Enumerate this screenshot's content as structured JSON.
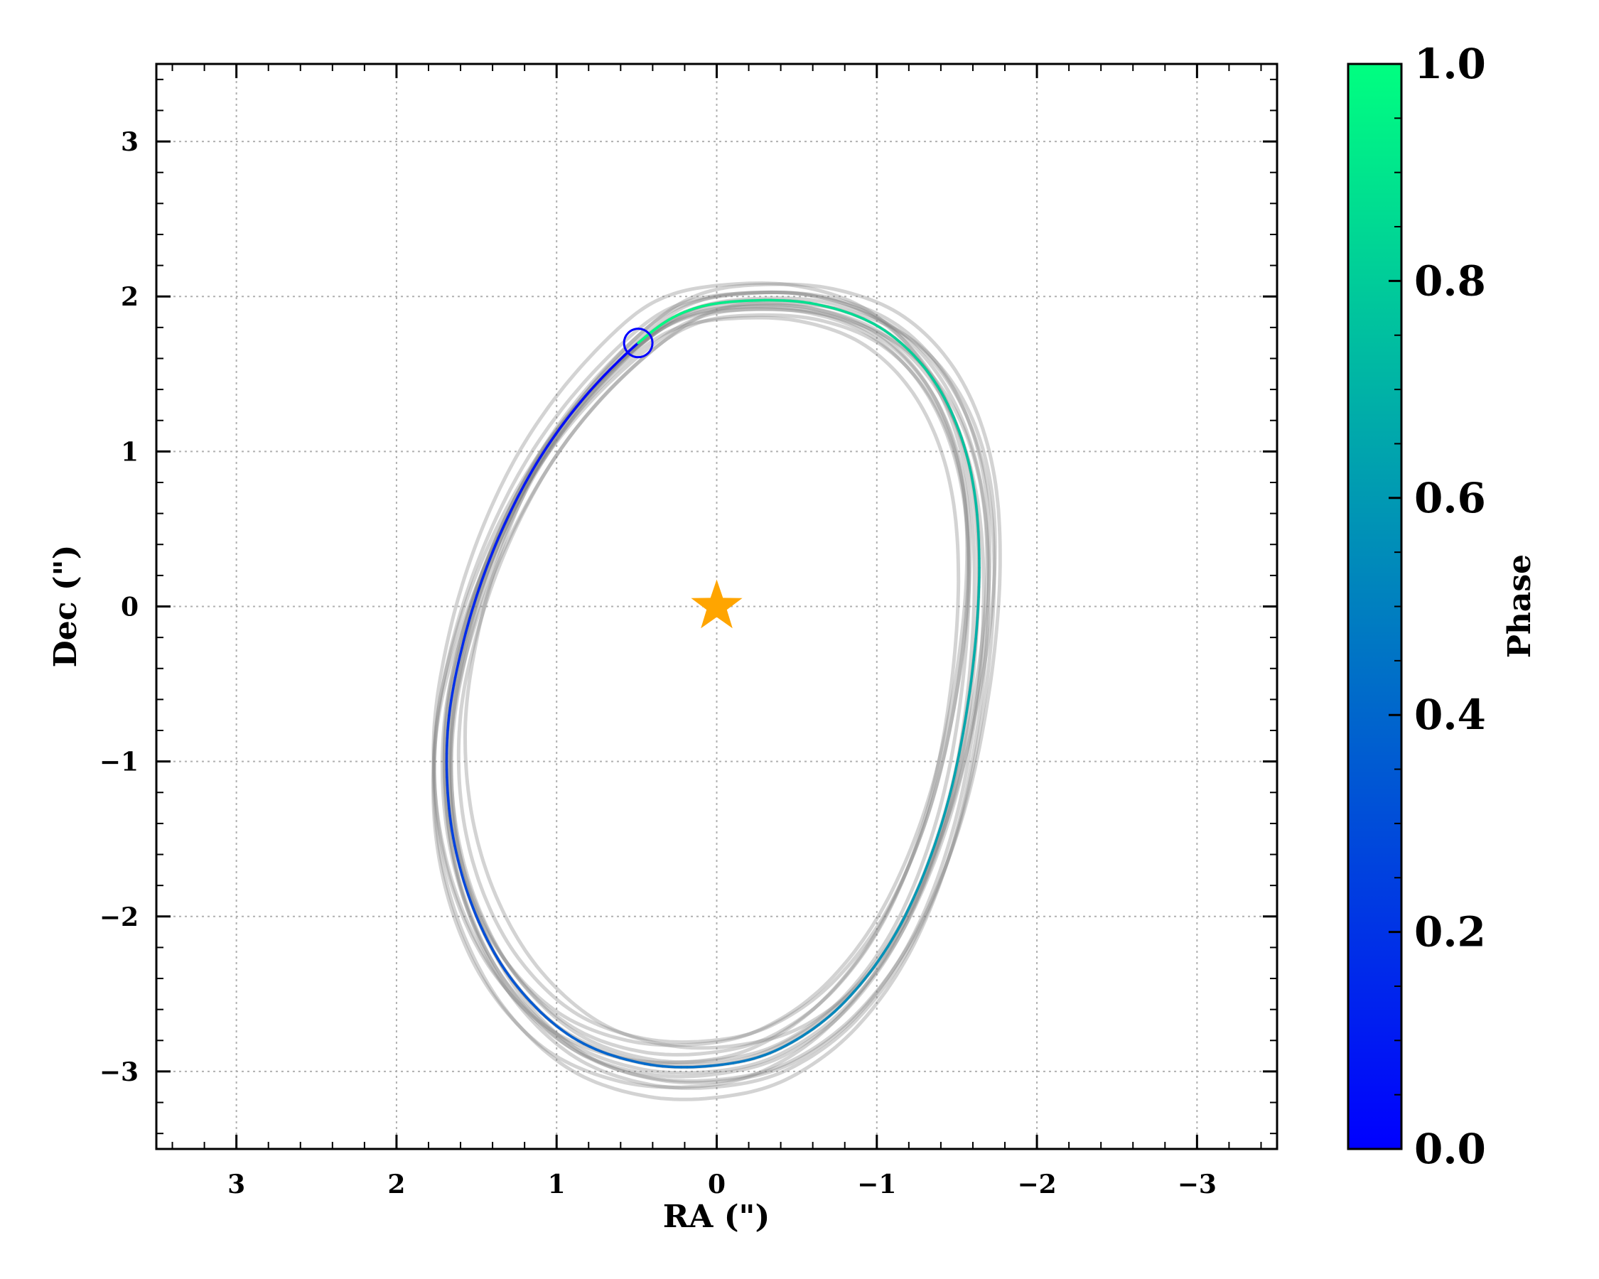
{
  "chart_data": {
    "type": "line",
    "title": "",
    "xlabel": "RA (\")",
    "ylabel": "Dec (\")",
    "xlim": [
      3.5,
      -3.5
    ],
    "ylim": [
      -3.5,
      3.5
    ],
    "xticks": [
      3,
      2,
      1,
      0,
      -1,
      -2,
      -3
    ],
    "yticks": [
      3,
      2,
      1,
      0,
      -1,
      -2,
      -3
    ],
    "xtick_labels": [
      "3",
      "2",
      "1",
      "0",
      "−1",
      "−2",
      "−3"
    ],
    "ytick_labels": [
      "3",
      "2",
      "1",
      "0",
      "−1",
      "−2",
      "−3"
    ],
    "grid": true,
    "colors": {
      "axes": "#000000",
      "grid": "#b0b0b0",
      "star": "#ffa500",
      "orbit_draws": "#808080",
      "marker": "#0000ff"
    },
    "star": {
      "x": 0.0,
      "y": 0.0,
      "label": ""
    },
    "best_orbit": {
      "colormap": "winter",
      "points": [
        {
          "x": 0.49,
          "y": 1.7,
          "phase": 0.0
        },
        {
          "x": 0.85,
          "y": 1.32,
          "phase": 0.06
        },
        {
          "x": 1.15,
          "y": 0.88,
          "phase": 0.11
        },
        {
          "x": 1.4,
          "y": 0.35,
          "phase": 0.17
        },
        {
          "x": 1.58,
          "y": -0.22,
          "phase": 0.23
        },
        {
          "x": 1.68,
          "y": -0.8,
          "phase": 0.29
        },
        {
          "x": 1.66,
          "y": -1.4,
          "phase": 0.35
        },
        {
          "x": 1.52,
          "y": -1.95,
          "phase": 0.41
        },
        {
          "x": 1.27,
          "y": -2.42,
          "phase": 0.47
        },
        {
          "x": 0.9,
          "y": -2.78,
          "phase": 0.52
        },
        {
          "x": 0.45,
          "y": -2.95,
          "phase": 0.57
        },
        {
          "x": 0.0,
          "y": -2.96,
          "phase": 0.61
        },
        {
          "x": -0.4,
          "y": -2.85,
          "phase": 0.65
        },
        {
          "x": -0.8,
          "y": -2.55,
          "phase": 0.69
        },
        {
          "x": -1.15,
          "y": -2.05,
          "phase": 0.73
        },
        {
          "x": -1.42,
          "y": -1.35,
          "phase": 0.77
        },
        {
          "x": -1.58,
          "y": -0.55,
          "phase": 0.81
        },
        {
          "x": -1.64,
          "y": 0.25,
          "phase": 0.85
        },
        {
          "x": -1.58,
          "y": 0.9,
          "phase": 0.88
        },
        {
          "x": -1.38,
          "y": 1.42,
          "phase": 0.91
        },
        {
          "x": -1.05,
          "y": 1.78,
          "phase": 0.94
        },
        {
          "x": -0.62,
          "y": 1.95,
          "phase": 0.96
        },
        {
          "x": -0.15,
          "y": 1.97,
          "phase": 0.98
        },
        {
          "x": 0.2,
          "y": 1.9,
          "phase": 0.99
        },
        {
          "x": 0.49,
          "y": 1.7,
          "phase": 1.0
        }
      ]
    },
    "current_position": {
      "x": 0.49,
      "y": 1.7
    },
    "colorbar": {
      "label": "Phase",
      "range": [
        0.0,
        1.0
      ],
      "ticks": [
        0.0,
        0.2,
        0.4,
        0.6,
        0.8,
        1.0
      ],
      "tick_labels": [
        "0.0",
        "0.2",
        "0.4",
        "0.6",
        "0.8",
        "1.0"
      ],
      "color_low": "#0000ff",
      "color_high": "#00ff80"
    }
  }
}
